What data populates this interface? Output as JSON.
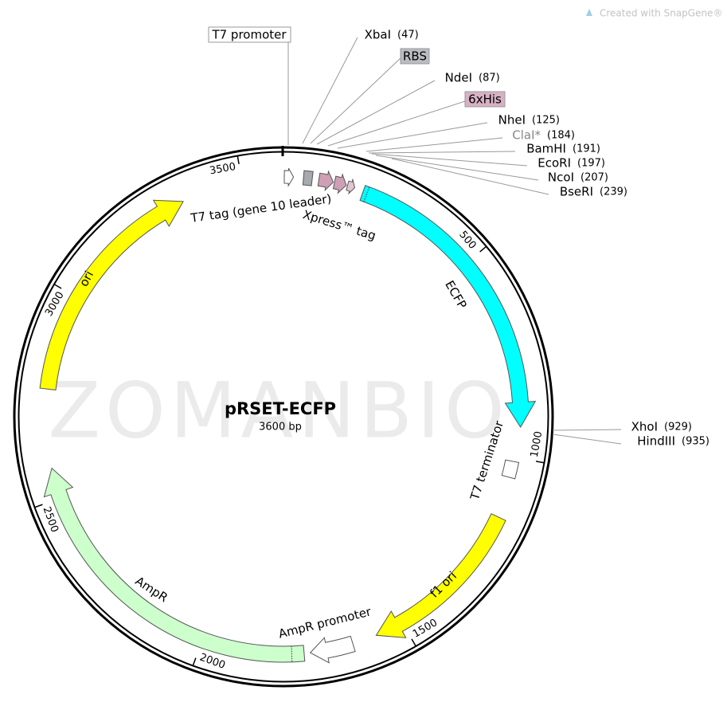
{
  "header": {
    "credit": "Created with SnapGene®"
  },
  "watermark": "ZOMANBIO",
  "plasmid": {
    "name": "pRSET-ECFP",
    "size": "3600 bp"
  },
  "sites": [
    {
      "name": "XbaI",
      "position": "(47)"
    },
    {
      "name": "NdeI",
      "position": "(87)"
    },
    {
      "name": "NheI",
      "position": "(125)"
    },
    {
      "name": "ClaI*",
      "position": "(184)"
    },
    {
      "name": "BamHI",
      "position": "(191)"
    },
    {
      "name": "EcoRI",
      "position": "(197)"
    },
    {
      "name": "NcoI",
      "position": "(207)"
    },
    {
      "name": "BseRI",
      "position": "(239)"
    },
    {
      "name": "XhoI",
      "position": "(929)"
    },
    {
      "name": "HindIII",
      "position": "(935)"
    }
  ],
  "features": [
    "T7 promoter",
    "RBS",
    "6xHis",
    "T7 tag (gene 10 leader)",
    "Xpress™ tag",
    "ECFP",
    "T7 terminator",
    "f1 ori",
    "AmpR promoter",
    "AmpR",
    "ori"
  ],
  "ruler": [
    "500",
    "1000",
    "1500",
    "2000",
    "2500",
    "3000",
    "3500"
  ]
}
